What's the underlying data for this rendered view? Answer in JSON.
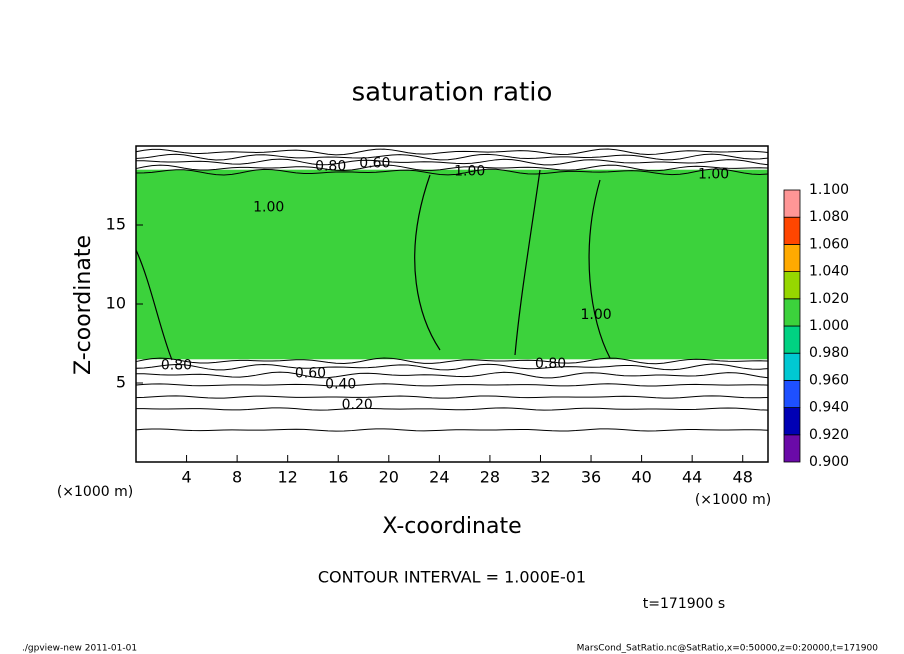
{
  "chart_data": {
    "type": "contour",
    "title": "saturation ratio",
    "x_label": "X-coordinate",
    "y_label": "Z-coordinate",
    "x_unit": "(×1000 m)",
    "x_unit_right": "(×1000 m)",
    "xlim": [
      0,
      50
    ],
    "xticks": [
      4,
      8,
      12,
      16,
      20,
      24,
      28,
      32,
      36,
      40,
      44,
      48
    ],
    "ylim": [
      0,
      20
    ],
    "yticks": [
      5,
      10,
      15
    ],
    "colorbar": {
      "levels": [
        {
          "value": 0.9,
          "label": "0.900"
        },
        {
          "value": 0.92,
          "label": "0.920"
        },
        {
          "value": 0.94,
          "label": "0.940"
        },
        {
          "value": 0.96,
          "label": "0.960"
        },
        {
          "value": 0.98,
          "label": "0.980"
        },
        {
          "value": 1.0,
          "label": "1.000"
        },
        {
          "value": 1.02,
          "label": "1.020"
        },
        {
          "value": 1.04,
          "label": "1.040"
        },
        {
          "value": 1.06,
          "label": "1.060"
        },
        {
          "value": 1.08,
          "label": "1.080"
        },
        {
          "value": 1.1,
          "label": "1.100"
        }
      ],
      "colors": [
        "#6a0aa8",
        "#0000b4",
        "#1e50ff",
        "#00c8d2",
        "#00d282",
        "#3cd23c",
        "#96d700",
        "#ffaa00",
        "#ff4600",
        "#ff9696"
      ]
    },
    "saturated_layer": {
      "value": 1.0,
      "z": [
        6.5,
        18.5
      ]
    },
    "contour_labels": [
      {
        "label": "0.80",
        "x": 3.2,
        "z": 6.1
      },
      {
        "label": "0.60",
        "x": 13.8,
        "z": 5.6
      },
      {
        "label": "0.40",
        "x": 16.2,
        "z": 4.9
      },
      {
        "label": "0.20",
        "x": 17.5,
        "z": 3.6
      },
      {
        "label": "1.00",
        "x": 10.5,
        "z": 16.1
      },
      {
        "label": "1.00",
        "x": 26.4,
        "z": 18.4
      },
      {
        "label": "0.80",
        "x": 15.4,
        "z": 18.7
      },
      {
        "label": "0.60",
        "x": 18.9,
        "z": 18.9
      },
      {
        "label": "1.00",
        "x": 45.7,
        "z": 18.2
      },
      {
        "label": "1.00",
        "x": 36.4,
        "z": 9.3
      },
      {
        "label": "0.80",
        "x": 32.8,
        "z": 6.2
      }
    ],
    "contour_interval": "CONTOUR INTERVAL = 1.000E-01",
    "time": "t=171900 s",
    "footer_left": "./gpview-new  2011-01-01",
    "footer_right": "MarsCond_SatRatio.nc@SatRatio,x=0:50000,z=0:20000,t=171900"
  }
}
